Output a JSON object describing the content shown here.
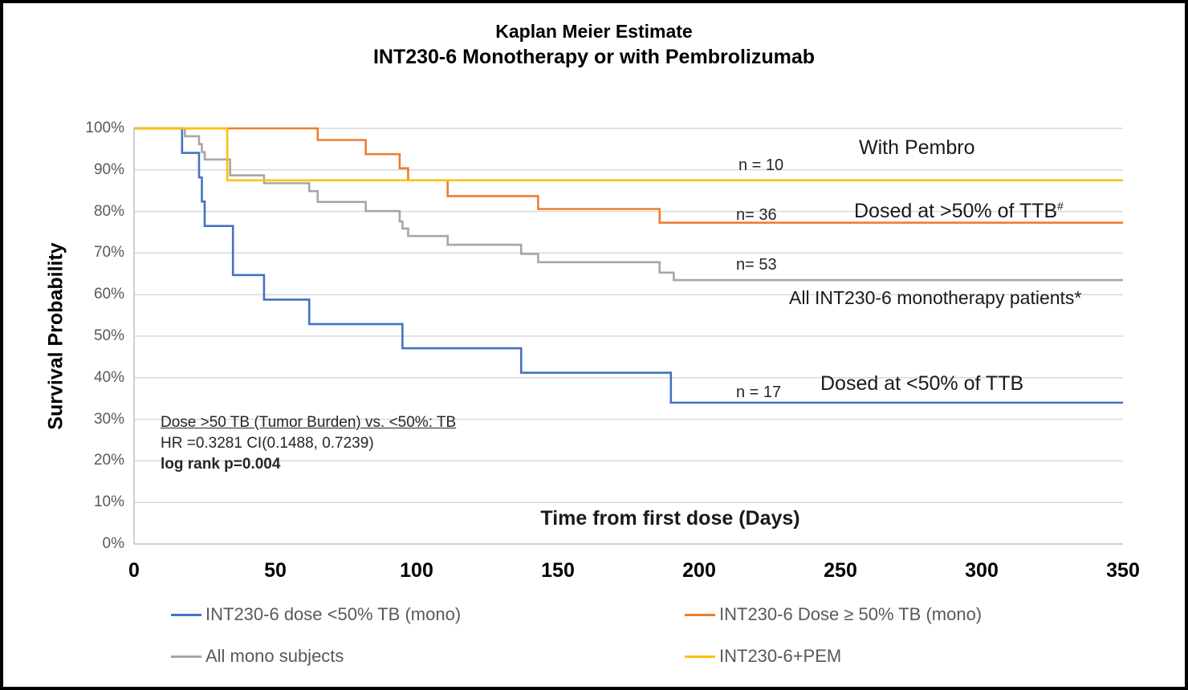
{
  "title": {
    "line1": "Kaplan Meier Estimate",
    "line2": "INT230-6 Monotherapy or with Pembrolizumab"
  },
  "axes": {
    "y_title": "Survival Probability",
    "x_title": "Time from first dose (Days)",
    "y_ticks": [
      {
        "value": 0,
        "label": "0%"
      },
      {
        "value": 10,
        "label": "10%"
      },
      {
        "value": 20,
        "label": "20%"
      },
      {
        "value": 30,
        "label": "30%"
      },
      {
        "value": 40,
        "label": "40%"
      },
      {
        "value": 50,
        "label": "50%"
      },
      {
        "value": 60,
        "label": "60%"
      },
      {
        "value": 70,
        "label": "70%"
      },
      {
        "value": 80,
        "label": "80%"
      },
      {
        "value": 90,
        "label": "90%"
      },
      {
        "value": 100,
        "label": "100%"
      }
    ],
    "x_ticks": [
      {
        "value": 0,
        "label": "0"
      },
      {
        "value": 50,
        "label": "50"
      },
      {
        "value": 100,
        "label": "100"
      },
      {
        "value": 150,
        "label": "150"
      },
      {
        "value": 200,
        "label": "200"
      },
      {
        "value": 250,
        "label": "250"
      },
      {
        "value": 300,
        "label": "300"
      },
      {
        "value": 350,
        "label": "350"
      }
    ]
  },
  "stats": {
    "line1": "Dose >50 TB (Tumor Burden) vs. <50%: TB",
    "line2": "HR =0.3281 CI(0.1488, 0.7239)",
    "line3": "log rank p=0.004"
  },
  "annotations": {
    "pembro": {
      "n_label": "n = 10",
      "label": "With Pembro"
    },
    "gt50": {
      "n_label": "n= 36",
      "label": "Dosed at >50% of TTB",
      "superscript": "#"
    },
    "mono": {
      "n_label": "n= 53",
      "label": "All INT230-6 monotherapy patients*"
    },
    "lt50": {
      "n_label": "n = 17",
      "label": "Dosed at <50% of TTB"
    }
  },
  "legend": {
    "items": [
      {
        "label": "INT230-6 dose <50% TB (mono)",
        "color": "#4472C4"
      },
      {
        "label": "INT230-6 Dose ≥ 50% TB (mono)",
        "color": "#ED7D31"
      },
      {
        "label": "All mono subjects",
        "color": "#A6A6A6"
      },
      {
        "label": "INT230-6+PEM",
        "color": "#FFC000"
      }
    ]
  },
  "colors": {
    "blue": "#4472C4",
    "orange": "#ED7D31",
    "gray": "#A6A6A6",
    "yellow": "#FFC000",
    "gridline": "#D9D9D9",
    "axis_line": "#BFBFBF",
    "tick_text": "#595959"
  },
  "chart_data": {
    "type": "line",
    "subtype": "kaplan-meier-step",
    "title": "Kaplan Meier Estimate — INT230-6 Monotherapy or with Pembrolizumab",
    "xlabel": "Time from first dose (Days)",
    "ylabel": "Survival Probability",
    "xlim": [
      0,
      350
    ],
    "ylim": [
      0,
      100
    ],
    "grid": "horizontal",
    "legend_position": "bottom",
    "series": [
      {
        "name": "All mono subjects",
        "color": "#A6A6A6",
        "n": 53,
        "x_end": 350,
        "steps": [
          [
            0,
            100
          ],
          [
            18,
            98.1
          ],
          [
            23,
            96.2
          ],
          [
            24,
            94.3
          ],
          [
            25,
            92.5
          ],
          [
            34,
            88.7
          ],
          [
            46,
            86.8
          ],
          [
            62,
            84.9
          ],
          [
            65,
            82.3
          ],
          [
            82,
            80.1
          ],
          [
            94,
            77.6
          ],
          [
            95,
            75.9
          ],
          [
            97,
            74.1
          ],
          [
            111,
            72.0
          ],
          [
            137,
            69.8
          ],
          [
            143,
            67.8
          ],
          [
            186,
            65.3
          ],
          [
            191,
            63.5
          ]
        ]
      },
      {
        "name": "INT230-6 dose <50% TB (mono)",
        "color": "#4472C4",
        "n": 17,
        "x_end": 350,
        "steps": [
          [
            0,
            100
          ],
          [
            17,
            94.1
          ],
          [
            23,
            88.2
          ],
          [
            24,
            82.4
          ],
          [
            25,
            76.5
          ],
          [
            35,
            64.7
          ],
          [
            46,
            58.8
          ],
          [
            62,
            52.9
          ],
          [
            95,
            47.1
          ],
          [
            137,
            41.2
          ],
          [
            190,
            34.0
          ]
        ]
      },
      {
        "name": "INT230-6 Dose ≥ 50% TB (mono)",
        "color": "#ED7D31",
        "n": 36,
        "x_end": 350,
        "steps": [
          [
            0,
            100
          ],
          [
            65,
            97.2
          ],
          [
            82,
            93.8
          ],
          [
            94,
            90.4
          ],
          [
            97,
            87.5
          ],
          [
            111,
            83.7
          ],
          [
            143,
            80.6
          ],
          [
            186,
            77.3
          ]
        ]
      },
      {
        "name": "INT230-6+PEM",
        "color": "#FFC000",
        "n": 10,
        "x_end": 350,
        "steps": [
          [
            0,
            100
          ],
          [
            33,
            87.5
          ]
        ]
      }
    ]
  }
}
